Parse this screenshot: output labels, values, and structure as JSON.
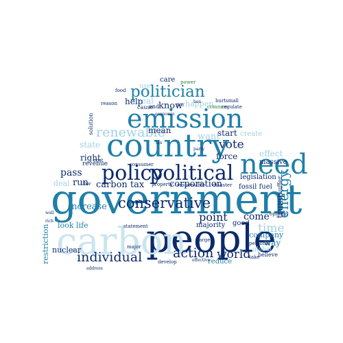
{
  "colors": {
    "background": "#ffffff",
    "navy": "#0b2a6b",
    "teal": "#1f7fa8",
    "light": "#9fd1e4",
    "pale": "#cbe5ef",
    "green": "#2f7d3a"
  },
  "words": [
    {
      "text": "government"
    },
    {
      "text": "people"
    },
    {
      "text": "carbon"
    },
    {
      "text": "country"
    },
    {
      "text": "emission"
    },
    {
      "text": "need"
    },
    {
      "text": "policy"
    },
    {
      "text": "political"
    },
    {
      "text": "politician"
    },
    {
      "text": "conservative"
    },
    {
      "text": "individual"
    },
    {
      "text": "renewable"
    },
    {
      "text": "action"
    },
    {
      "text": "energy"
    },
    {
      "text": "vote"
    },
    {
      "text": "time"
    },
    {
      "text": "world"
    },
    {
      "text": "corporation"
    },
    {
      "text": "carbon tax"
    },
    {
      "text": "pass"
    },
    {
      "text": "right"
    },
    {
      "text": "run"
    },
    {
      "text": "increase"
    },
    {
      "text": "point"
    },
    {
      "text": "mean"
    },
    {
      "text": "state"
    },
    {
      "text": "restriction"
    },
    {
      "text": "company"
    },
    {
      "text": "trump"
    },
    {
      "text": "legislation"
    },
    {
      "text": "effect"
    },
    {
      "text": "fossil fuel"
    },
    {
      "text": "come"
    },
    {
      "text": "force"
    },
    {
      "text": "start"
    },
    {
      "text": "want"
    },
    {
      "text": "know"
    },
    {
      "text": "real"
    },
    {
      "text": "help"
    },
    {
      "text": "care"
    },
    {
      "text": "happen"
    },
    {
      "text": "look life"
    },
    {
      "text": "nuclear"
    },
    {
      "text": "way"
    },
    {
      "text": "reduce"
    },
    {
      "text": "majority"
    },
    {
      "text": "good"
    },
    {
      "text": "deal"
    },
    {
      "text": "massive"
    },
    {
      "text": "global"
    },
    {
      "text": "believe"
    },
    {
      "text": "create"
    },
    {
      "text": "revenue"
    },
    {
      "text": "consumer"
    },
    {
      "text": "use"
    },
    {
      "text": "cause"
    },
    {
      "text": "end"
    },
    {
      "text": "develop"
    },
    {
      "text": "opinion"
    },
    {
      "text": "personal"
    },
    {
      "text": "take"
    },
    {
      "text": "suffer"
    },
    {
      "text": "common"
    },
    {
      "text": "small"
    },
    {
      "text": "regulate"
    },
    {
      "text": "solution"
    },
    {
      "text": "hurt"
    },
    {
      "text": "party"
    },
    {
      "text": "ban"
    },
    {
      "text": "economic"
    },
    {
      "text": "tax"
    },
    {
      "text": "rich"
    },
    {
      "text": "pay"
    },
    {
      "text": "power"
    },
    {
      "text": "plant"
    },
    {
      "text": "statement"
    },
    {
      "text": "large"
    },
    {
      "text": "effective"
    },
    {
      "text": "disaster"
    },
    {
      "text": "responsible"
    },
    {
      "text": "address"
    },
    {
      "text": "major"
    },
    {
      "text": "reason"
    },
    {
      "text": "food"
    },
    {
      "text": "low"
    },
    {
      "text": "wall"
    },
    {
      "text": "cost"
    },
    {
      "text": "property"
    }
  ]
}
